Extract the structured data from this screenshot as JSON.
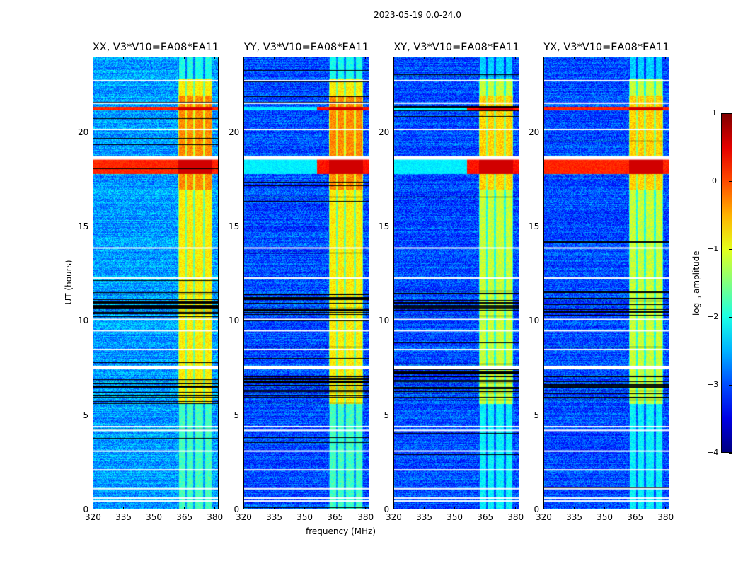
{
  "chart_data": {
    "type": "heatmap",
    "title": "2023-05-19 0.0-24.0",
    "xlabel": "frequency (MHz)",
    "ylabel": "UT (hours)",
    "x_range": [
      320,
      382
    ],
    "y_range": [
      0,
      24
    ],
    "x_ticks": [
      "320",
      "335",
      "350",
      "365",
      "380"
    ],
    "y_ticks": [
      "0",
      "5",
      "10",
      "15",
      "20"
    ],
    "panels": [
      {
        "title": "XX, V3*V10=EA08*EA11",
        "pol": "XX"
      },
      {
        "title": "YY, V3*V10=EA08*EA11",
        "pol": "YY"
      },
      {
        "title": "XY, V3*V10=EA08*EA11",
        "pol": "XY"
      },
      {
        "title": "YX, V3*V10=EA08*EA11",
        "pol": "YX"
      }
    ],
    "colorbar": {
      "label_prefix": "log",
      "label_sub": "10",
      "label_suffix": " amplitude",
      "range": [
        -4,
        1
      ],
      "ticks": [
        "1",
        "0",
        "−1",
        "−2",
        "−3",
        "−4"
      ],
      "colormap": "jet"
    },
    "features": {
      "bright_band_freq_MHz": [
        362,
        381
      ],
      "bright_band_sub_channels_MHz": [
        [
          362,
          366
        ],
        [
          366,
          370
        ],
        [
          370,
          375
        ],
        [
          375,
          379
        ]
      ],
      "strong_rfi_hours": [
        [
          17.8,
          18.6
        ],
        [
          21.2,
          21.4
        ]
      ],
      "flagged_white_hours": [
        0.45,
        0.6,
        1.1,
        2.1,
        3.1,
        4.2,
        4.4,
        7.6,
        8.5,
        9.5,
        10.1,
        12.3,
        13.9,
        18.75,
        20.2,
        21.6,
        22.8
      ],
      "dense_black_flag_hours": [
        [
          5.6,
          7.3
        ],
        [
          10.2,
          11.6
        ]
      ]
    }
  }
}
